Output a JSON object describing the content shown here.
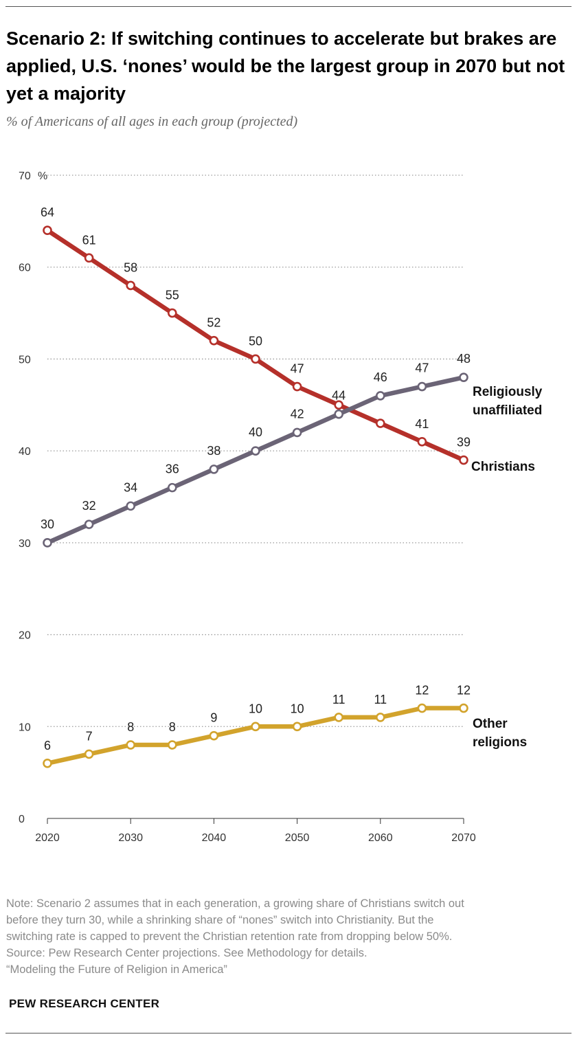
{
  "header": {
    "title": "Scenario 2: If switching continues to accelerate but brakes are applied, U.S. ‘nones’ would be the largest group in 2070 but not yet a majority",
    "subtitle": "% of Americans of all ages in each group (projected)"
  },
  "chart_data": {
    "type": "line",
    "x": [
      2020,
      2025,
      2030,
      2035,
      2040,
      2045,
      2050,
      2055,
      2060,
      2065,
      2070
    ],
    "x_tick_labels": [
      "2020",
      "2030",
      "2040",
      "2050",
      "2060",
      "2070"
    ],
    "y_tick_labels": [
      "0",
      "10",
      "20",
      "30",
      "40",
      "50",
      "60",
      "70"
    ],
    "y_unit": "%",
    "ylim": [
      0,
      70
    ],
    "grid": true,
    "series": [
      {
        "name": "Christians",
        "label_lines": [
          "Christians"
        ],
        "color": "#b5302a",
        "values": [
          64,
          61,
          58,
          55,
          52,
          50,
          47,
          45,
          43,
          41,
          39
        ],
        "data_labels": [
          "64",
          "61",
          "58",
          "55",
          "52",
          "50",
          "47",
          "",
          "",
          "41",
          "39"
        ]
      },
      {
        "name": "Religiously unaffiliated",
        "label_lines": [
          "Religiously",
          "unaffiliated"
        ],
        "color": "#6b6476",
        "values": [
          30,
          32,
          34,
          36,
          38,
          40,
          42,
          44,
          46,
          47,
          48
        ],
        "data_labels": [
          "30",
          "32",
          "34",
          "36",
          "38",
          "40",
          "42",
          "44",
          "46",
          "47",
          "48"
        ]
      },
      {
        "name": "Other religions",
        "label_lines": [
          "Other",
          "religions"
        ],
        "color": "#d2a32c",
        "values": [
          6,
          7,
          8,
          8,
          9,
          10,
          10,
          11,
          11,
          12,
          12
        ],
        "data_labels": [
          "6",
          "7",
          "8",
          "8",
          "9",
          "10",
          "10",
          "11",
          "11",
          "12",
          "12"
        ]
      }
    ]
  },
  "footer": {
    "note_lines": [
      "Note: Scenario 2 assumes that in each generation, a growing share of Christians switch out",
      "before they turn 30, while a shrinking share of “nones” switch into Christianity. But the",
      "switching rate is capped to prevent the Christian retention rate from dropping below 50%.",
      "Source: Pew Research Center projections. See Methodology for details.",
      "“Modeling the Future of Religion in America”"
    ],
    "brand": "PEW RESEARCH CENTER"
  }
}
